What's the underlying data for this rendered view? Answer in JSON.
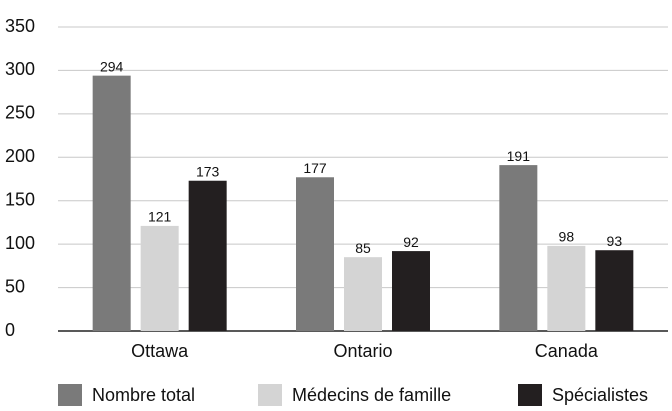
{
  "chart_data": {
    "type": "bar",
    "categories": [
      "Ottawa",
      "Ontario",
      "Canada"
    ],
    "series": [
      {
        "name": "Nombre total",
        "color": "#7a7a7a",
        "values": [
          294,
          177,
          191
        ]
      },
      {
        "name": "Médecins de famille",
        "color": "#d4d4d4",
        "values": [
          121,
          85,
          98
        ]
      },
      {
        "name": "Spécialistes",
        "color": "#231f20",
        "values": [
          173,
          92,
          93
        ]
      }
    ],
    "ylim": [
      0,
      350
    ],
    "yticks": [
      0,
      50,
      100,
      150,
      200,
      250,
      300,
      350
    ],
    "grid": true,
    "legend": "bottom"
  }
}
